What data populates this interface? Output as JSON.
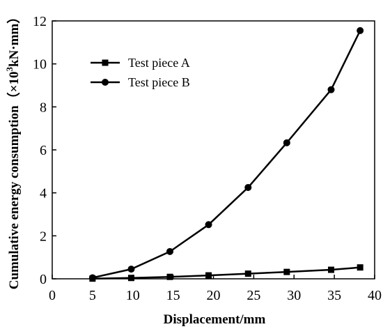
{
  "chart_data": {
    "type": "line",
    "xlabel": "Displacement/mm",
    "ylabel": {
      "prefix": "Cumulative energy consumption（×10",
      "sup": "3",
      "suffix": "kN·mm）"
    },
    "xlim": [
      0,
      40
    ],
    "ylim": [
      0,
      12
    ],
    "xticks": [
      "0",
      "5",
      "10",
      "15",
      "20",
      "25",
      "30",
      "35",
      "40"
    ],
    "yticks": [
      "0",
      "2",
      "4",
      "6",
      "8",
      "10",
      "12"
    ],
    "grid": false,
    "legend_position": "top-left",
    "series": [
      {
        "name": "Test piece A",
        "marker": "square",
        "x": [
          5,
          9.8,
          14.6,
          19.4,
          24.3,
          29.1,
          34.6,
          38.2
        ],
        "y": [
          0.01,
          0.04,
          0.09,
          0.16,
          0.24,
          0.32,
          0.42,
          0.53
        ]
      },
      {
        "name": "Test piece B",
        "marker": "circle",
        "x": [
          5,
          9.8,
          14.6,
          19.4,
          24.3,
          29.1,
          34.6,
          38.2
        ],
        "y": [
          0.05,
          0.45,
          1.27,
          2.52,
          4.25,
          6.33,
          8.8,
          11.55
        ]
      }
    ]
  }
}
